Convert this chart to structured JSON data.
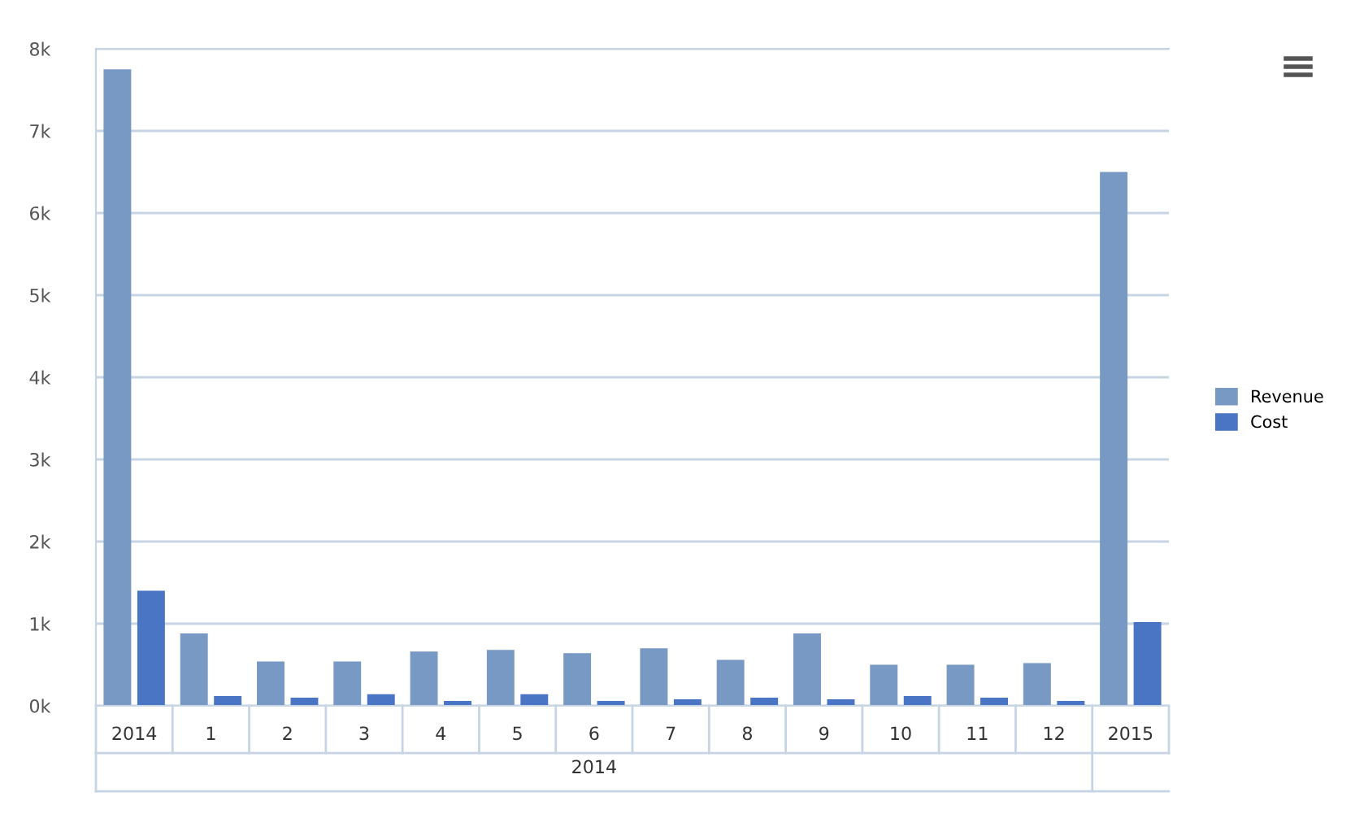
{
  "chart_data": {
    "type": "bar",
    "categories": [
      "2014",
      "1",
      "2",
      "3",
      "4",
      "5",
      "6",
      "7",
      "8",
      "9",
      "10",
      "11",
      "12",
      "2015"
    ],
    "series": [
      {
        "name": "Revenue",
        "color": "#7799c4",
        "values": [
          7750,
          880,
          540,
          540,
          660,
          680,
          640,
          700,
          560,
          880,
          500,
          500,
          520,
          6500
        ]
      },
      {
        "name": "Cost",
        "color": "#4a74c4",
        "values": [
          1400,
          120,
          100,
          140,
          60,
          140,
          60,
          80,
          100,
          80,
          120,
          100,
          60,
          1020
        ]
      }
    ],
    "ylim": [
      0,
      8000
    ],
    "yticks": [
      {
        "value": 0,
        "label": "0k"
      },
      {
        "value": 1000,
        "label": "1k"
      },
      {
        "value": 2000,
        "label": "2k"
      },
      {
        "value": 3000,
        "label": "3k"
      },
      {
        "value": 4000,
        "label": "4k"
      },
      {
        "value": 5000,
        "label": "5k"
      },
      {
        "value": 6000,
        "label": "6k"
      },
      {
        "value": 7000,
        "label": "7k"
      },
      {
        "value": 8000,
        "label": "8k"
      }
    ],
    "grid": "y",
    "legend": "right",
    "annotations": [
      "2014"
    ]
  }
}
